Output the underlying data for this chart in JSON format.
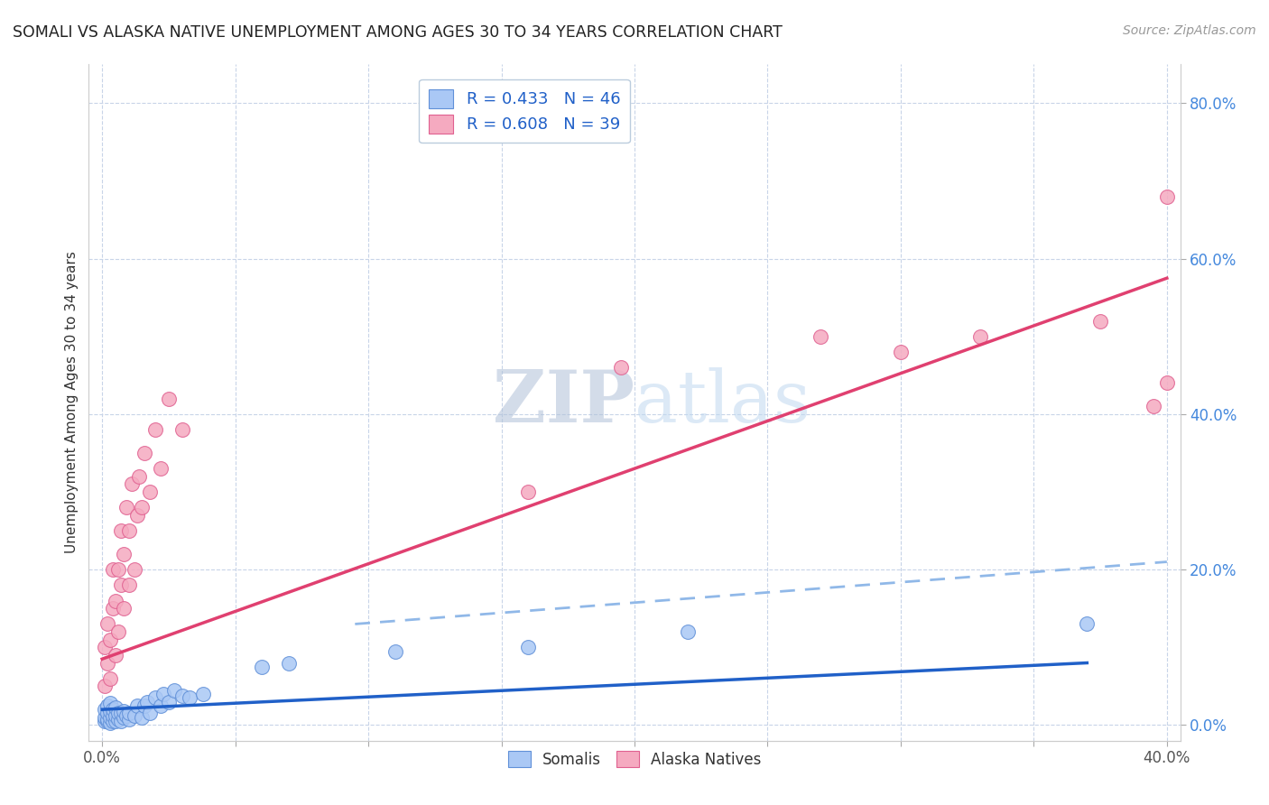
{
  "title": "SOMALI VS ALASKA NATIVE UNEMPLOYMENT AMONG AGES 30 TO 34 YEARS CORRELATION CHART",
  "source": "Source: ZipAtlas.com",
  "ylabel": "Unemployment Among Ages 30 to 34 years",
  "xlim": [
    0.0,
    0.42
  ],
  "ylim": [
    -0.02,
    0.88
  ],
  "plot_xlim": [
    0.0,
    0.4
  ],
  "plot_ylim": [
    0.0,
    0.8
  ],
  "xtick_positions": [
    0.0,
    0.4
  ],
  "xtick_labels": [
    "0.0%",
    "40.0%"
  ],
  "ytick_right_positions": [
    0.0,
    0.2,
    0.4,
    0.6,
    0.8
  ],
  "ytick_right_labels": [
    "0.0%",
    "20.0%",
    "40.0%",
    "60.0%",
    "80.0%"
  ],
  "legend_line1": "R = 0.433   N = 46",
  "legend_line2": "R = 0.608   N = 39",
  "legend_label1": "Somalis",
  "legend_label2": "Alaska Natives",
  "somali_color": "#aac8f5",
  "alaska_color": "#f5aac0",
  "somali_edge_color": "#6090d8",
  "alaska_edge_color": "#e06090",
  "somali_line_color": "#2060c8",
  "alaska_line_color": "#e04070",
  "dashed_line_color": "#90b8e8",
  "watermark_color": "#c8d8f0",
  "background_color": "#ffffff",
  "grid_color": "#c8d4e8",
  "somali_scatter_x": [
    0.001,
    0.001,
    0.001,
    0.002,
    0.002,
    0.002,
    0.002,
    0.003,
    0.003,
    0.003,
    0.003,
    0.004,
    0.004,
    0.004,
    0.005,
    0.005,
    0.005,
    0.006,
    0.006,
    0.007,
    0.007,
    0.008,
    0.008,
    0.009,
    0.01,
    0.01,
    0.012,
    0.013,
    0.015,
    0.016,
    0.017,
    0.018,
    0.02,
    0.022,
    0.023,
    0.025,
    0.027,
    0.03,
    0.033,
    0.038,
    0.06,
    0.07,
    0.11,
    0.16,
    0.22,
    0.37
  ],
  "somali_scatter_y": [
    0.005,
    0.01,
    0.02,
    0.005,
    0.008,
    0.015,
    0.025,
    0.003,
    0.01,
    0.018,
    0.028,
    0.005,
    0.012,
    0.02,
    0.005,
    0.012,
    0.022,
    0.008,
    0.015,
    0.005,
    0.015,
    0.01,
    0.018,
    0.012,
    0.008,
    0.015,
    0.012,
    0.025,
    0.01,
    0.025,
    0.03,
    0.015,
    0.035,
    0.025,
    0.04,
    0.03,
    0.045,
    0.038,
    0.035,
    0.04,
    0.075,
    0.08,
    0.095,
    0.1,
    0.12,
    0.13
  ],
  "alaska_scatter_x": [
    0.001,
    0.001,
    0.002,
    0.002,
    0.003,
    0.003,
    0.004,
    0.004,
    0.005,
    0.005,
    0.006,
    0.006,
    0.007,
    0.007,
    0.008,
    0.008,
    0.009,
    0.01,
    0.01,
    0.011,
    0.012,
    0.013,
    0.014,
    0.015,
    0.016,
    0.018,
    0.02,
    0.022,
    0.025,
    0.03,
    0.16,
    0.195,
    0.27,
    0.3,
    0.33,
    0.375,
    0.395,
    0.4,
    0.4
  ],
  "alaska_scatter_y": [
    0.05,
    0.1,
    0.08,
    0.13,
    0.06,
    0.11,
    0.15,
    0.2,
    0.09,
    0.16,
    0.12,
    0.2,
    0.18,
    0.25,
    0.15,
    0.22,
    0.28,
    0.18,
    0.25,
    0.31,
    0.2,
    0.27,
    0.32,
    0.28,
    0.35,
    0.3,
    0.38,
    0.33,
    0.42,
    0.38,
    0.3,
    0.46,
    0.5,
    0.48,
    0.5,
    0.52,
    0.41,
    0.68,
    0.44
  ],
  "somali_trendline_x": [
    0.0,
    0.37
  ],
  "somali_trendline_y": [
    0.02,
    0.08
  ],
  "alaska_trendline_x": [
    0.0,
    0.4
  ],
  "alaska_trendline_y": [
    0.085,
    0.575
  ],
  "dashed_line_x": [
    0.095,
    0.4
  ],
  "dashed_line_y": [
    0.13,
    0.21
  ]
}
